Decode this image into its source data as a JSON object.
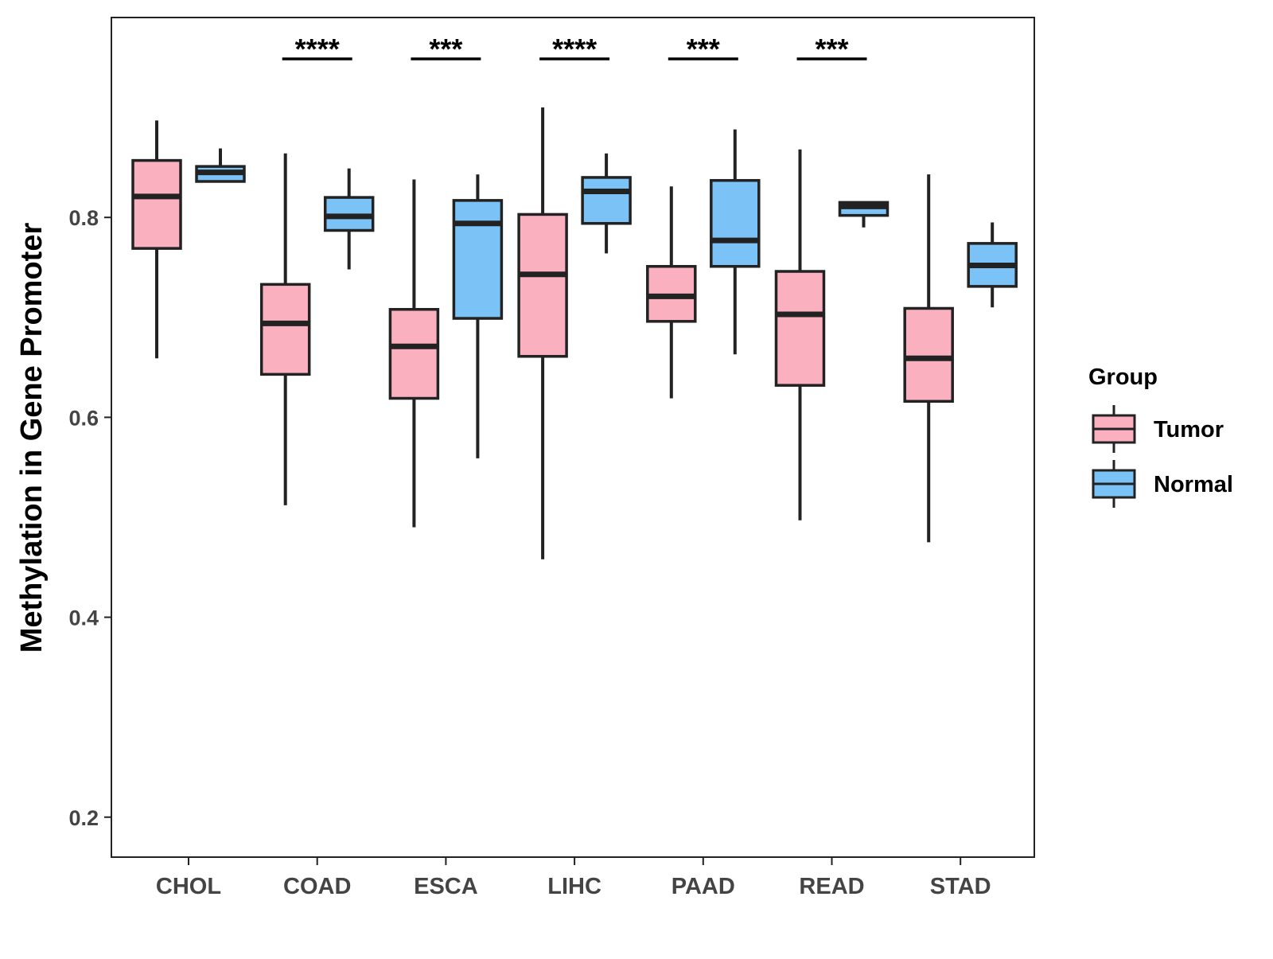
{
  "chart_data": {
    "type": "boxplot",
    "title": "",
    "xlabel": "",
    "ylabel": "Methylation in Gene Promoter",
    "ylim": [
      0.16,
      1.0
    ],
    "yticks": [
      0.2,
      0.4,
      0.6,
      0.8
    ],
    "ytick_labels": [
      "0.2",
      "0.4",
      "0.6",
      "0.8"
    ],
    "grid": false,
    "legend": {
      "title": "Group",
      "position": "right",
      "entries": [
        {
          "name": "Tumor",
          "color": "#FBB0C0"
        },
        {
          "name": "Normal",
          "color": "#7BC2F7"
        }
      ]
    },
    "categories": [
      "CHOL",
      "COAD",
      "ESCA",
      "LIHC",
      "PAAD",
      "READ",
      "STAD"
    ],
    "series": [
      {
        "name": "Tumor",
        "color": "#FBB0C0",
        "boxes": [
          {
            "min": 0.659,
            "q1": 0.769,
            "median": 0.821,
            "q3": 0.857,
            "max": 0.897
          },
          {
            "min": 0.512,
            "q1": 0.643,
            "median": 0.694,
            "q3": 0.733,
            "max": 0.864
          },
          {
            "min": 0.49,
            "q1": 0.619,
            "median": 0.671,
            "q3": 0.708,
            "max": 0.838
          },
          {
            "min": 0.458,
            "q1": 0.661,
            "median": 0.743,
            "q3": 0.803,
            "max": 0.91
          },
          {
            "min": 0.619,
            "q1": 0.696,
            "median": 0.721,
            "q3": 0.751,
            "max": 0.831
          },
          {
            "min": 0.497,
            "q1": 0.632,
            "median": 0.703,
            "q3": 0.746,
            "max": 0.868
          },
          {
            "min": 0.475,
            "q1": 0.616,
            "median": 0.659,
            "q3": 0.709,
            "max": 0.843
          }
        ]
      },
      {
        "name": "Normal",
        "color": "#7BC2F7",
        "boxes": [
          {
            "min": 0.836,
            "q1": 0.836,
            "median": 0.845,
            "q3": 0.851,
            "max": 0.869
          },
          {
            "min": 0.748,
            "q1": 0.787,
            "median": 0.801,
            "q3": 0.82,
            "max": 0.849
          },
          {
            "min": 0.559,
            "q1": 0.699,
            "median": 0.794,
            "q3": 0.817,
            "max": 0.843
          },
          {
            "min": 0.764,
            "q1": 0.794,
            "median": 0.826,
            "q3": 0.84,
            "max": 0.864
          },
          {
            "min": 0.663,
            "q1": 0.751,
            "median": 0.777,
            "q3": 0.837,
            "max": 0.888
          },
          {
            "min": 0.79,
            "q1": 0.802,
            "median": 0.811,
            "q3": 0.815,
            "max": 0.815
          },
          {
            "min": 0.71,
            "q1": 0.731,
            "median": 0.752,
            "q3": 0.774,
            "max": 0.795
          }
        ]
      }
    ],
    "significance": [
      "",
      "****",
      "***",
      "****",
      "***",
      "***",
      ""
    ]
  }
}
